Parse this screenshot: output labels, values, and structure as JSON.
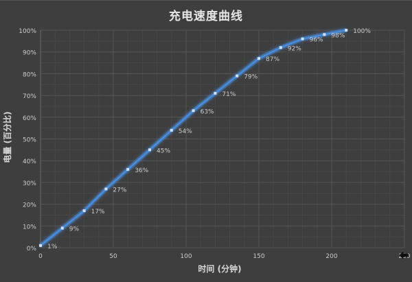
{
  "chart_data": {
    "type": "line",
    "title": "充电速度曲线",
    "xlabel": "时间 (分钟)",
    "ylabel": "电量 (百分比)",
    "x": [
      0,
      15,
      30,
      45,
      60,
      75,
      90,
      105,
      120,
      135,
      150,
      165,
      180,
      195,
      210
    ],
    "series": [
      {
        "name": "电量",
        "values": [
          1,
          9,
          17,
          27,
          36,
          45,
          54,
          63,
          71,
          79,
          87,
          92,
          96,
          98,
          100
        ],
        "labels": [
          "1%",
          "9%",
          "17%",
          "27%",
          "36%",
          "45%",
          "54%",
          "63%",
          "71%",
          "79%",
          "87%",
          "92%",
          "96%",
          "98%",
          "100%"
        ],
        "color": "#4a8fe0"
      }
    ],
    "xlim": [
      0,
      250
    ],
    "ylim": [
      0,
      100
    ],
    "xticks": [
      "0",
      "50",
      "100",
      "150",
      "200",
      "250"
    ],
    "yticks": [
      "0%",
      "10%",
      "20%",
      "30%",
      "40%",
      "50%",
      "60%",
      "70%",
      "80%",
      "90%",
      "100%"
    ],
    "grid": true,
    "minor_grid": true,
    "legend": "none"
  },
  "colors": {
    "background": "#3e3e3e",
    "grid_major": "#555555",
    "grid_minor": "#474747",
    "line": "#4a8fe0",
    "marker": "#cfe2ff",
    "text": "#cccccc"
  }
}
